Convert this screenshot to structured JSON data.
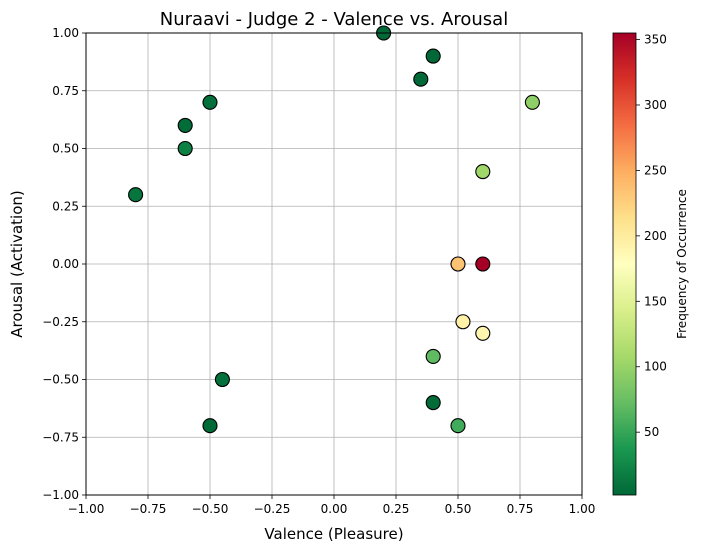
{
  "chart_data": {
    "type": "scatter",
    "title": "Nuraavi - Judge 2 - Valence vs. Arousal",
    "xlabel": "Valence (Pleasure)",
    "ylabel": "Arousal (Activation)",
    "xlim": [
      -1.0,
      1.0
    ],
    "ylim": [
      -1.0,
      1.0
    ],
    "xticks": [
      "−1.00",
      "−0.75",
      "−0.50",
      "−0.25",
      "0.00",
      "0.25",
      "0.50",
      "0.75",
      "1.00"
    ],
    "yticks": [
      "−1.00",
      "−0.75",
      "−0.50",
      "−0.25",
      "0.00",
      "0.25",
      "0.50",
      "0.75",
      "1.00"
    ],
    "grid": true,
    "colormap": "RdYlGn_r",
    "colorbar": {
      "label": "Frequency of Occurrence",
      "range": [
        2,
        355
      ],
      "ticks": [
        "50",
        "100",
        "150",
        "200",
        "250",
        "300",
        "350"
      ]
    },
    "points": [
      {
        "x": 0.2,
        "y": 1.0,
        "frequency": 3
      },
      {
        "x": 0.4,
        "y": 0.9,
        "frequency": 3
      },
      {
        "x": 0.35,
        "y": 0.8,
        "frequency": 3
      },
      {
        "x": 0.8,
        "y": 0.7,
        "frequency": 95
      },
      {
        "x": -0.5,
        "y": 0.7,
        "frequency": 8
      },
      {
        "x": -0.6,
        "y": 0.6,
        "frequency": 6
      },
      {
        "x": -0.6,
        "y": 0.5,
        "frequency": 20
      },
      {
        "x": 0.6,
        "y": 0.4,
        "frequency": 105
      },
      {
        "x": -0.8,
        "y": 0.3,
        "frequency": 12
      },
      {
        "x": 0.5,
        "y": 0.0,
        "frequency": 235
      },
      {
        "x": 0.6,
        "y": 0.0,
        "frequency": 355
      },
      {
        "x": 0.52,
        "y": -0.25,
        "frequency": 195
      },
      {
        "x": 0.6,
        "y": -0.3,
        "frequency": 190
      },
      {
        "x": 0.4,
        "y": -0.4,
        "frequency": 70
      },
      {
        "x": -0.45,
        "y": -0.5,
        "frequency": 8
      },
      {
        "x": 0.4,
        "y": -0.6,
        "frequency": 5
      },
      {
        "x": -0.5,
        "y": -0.7,
        "frequency": 4
      },
      {
        "x": 0.5,
        "y": -0.7,
        "frequency": 55
      }
    ]
  }
}
